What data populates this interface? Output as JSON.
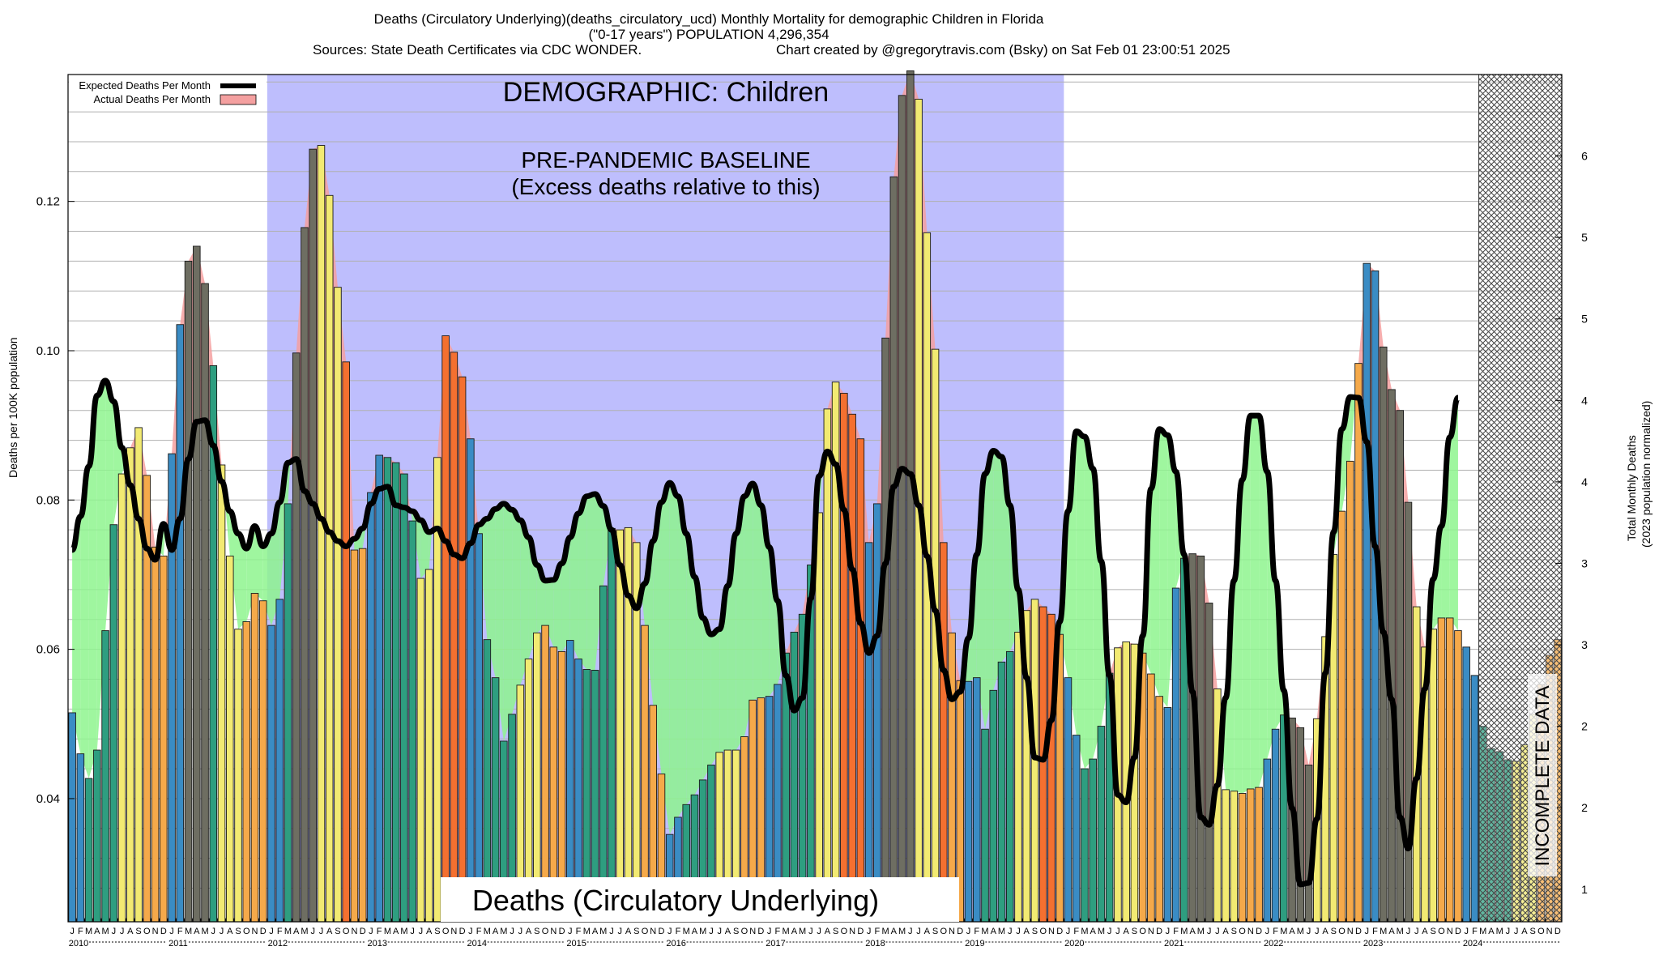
{
  "header": {
    "title": "Deaths (Circulatory Underlying)(deaths_circulatory_ucd) Monthly Mortality for demographic Children in Florida",
    "subtitle": "(\"0-17 years\") POPULATION 4,296,354",
    "sources": "Sources: State Death Certificates via CDC WONDER.",
    "credit": "Chart created by @gregorytravis.com (Bsky) on Sat Feb 01 23:00:51 2025"
  },
  "chart_data": {
    "type": "bar",
    "title": "Deaths (Circulatory Underlying)(deaths_circulatory_ucd) Monthly Mortality for demographic Children in Florida",
    "ylabel": "Deaths per 100K population",
    "y2label_line1": "Total Monthly Deaths",
    "y2label_line2": "(2023 population normalized)",
    "ylim": [
      0.0235,
      0.137
    ],
    "y2lim": [
      0.8,
      6
    ],
    "y_ticks": [
      "0.04",
      "0.06",
      "0.08",
      "0.10",
      "0.12"
    ],
    "y_tick_values": [
      0.04,
      0.06,
      0.08,
      0.1,
      0.12
    ],
    "y2_ticks": [
      "1",
      "2",
      "2",
      "3",
      "3",
      "4",
      "4",
      "5",
      "5",
      "6"
    ],
    "month_letters": [
      "J",
      "F",
      "M",
      "A",
      "M",
      "J",
      "J",
      "A",
      "S",
      "O",
      "N",
      "D"
    ],
    "years": [
      "2010",
      "2011",
      "2012",
      "2013",
      "2014",
      "2015",
      "2016",
      "2017",
      "2018",
      "2019",
      "2020",
      "2021",
      "2022",
      "2023",
      "2024"
    ],
    "x_start": "2010-01",
    "legend": {
      "position": "top-left",
      "items": [
        {
          "label": "Expected Deaths Per Month",
          "color": "#000000"
        },
        {
          "label": "Actual Deaths Per Month",
          "color": "#f4a0a0"
        }
      ]
    },
    "annotations": {
      "demographic": "DEMOGRAPHIC: Children",
      "baseline_line1": "PRE-PANDEMIC BASELINE",
      "baseline_line2": "(Excess deaths relative to this)",
      "metric": "Deaths (Circulatory Underlying)",
      "incomplete": "INCOMPLETE DATA"
    },
    "baseline_period": [
      "2012-01",
      "2019-12"
    ],
    "incomplete_period": [
      "2024-03",
      "2024-12"
    ],
    "colors": {
      "baseline_fill": "#bebefd",
      "excess_fill": "#f4a0a0",
      "deficit_fill": "#8ef58e",
      "bar_blue": "#3a8cc4",
      "bar_teal": "#2e9e80",
      "bar_yellow": "#f2ea72",
      "bar_orange": "#f5a94a",
      "bar_deep_orange": "#f47030",
      "bar_gray": "#6e6e62",
      "expected_line": "#000000"
    },
    "series": [
      {
        "name": "Actual Deaths Per Month",
        "values": [
          0.0515,
          0.046,
          0.0427,
          0.0465,
          0.0625,
          0.0767,
          0.0835,
          0.087,
          0.0897,
          0.0833,
          0.0737,
          0.0725,
          0.0862,
          0.1035,
          0.112,
          0.114,
          0.109,
          0.098,
          0.0847,
          0.0725,
          0.0627,
          0.0637,
          0.0675,
          0.0665,
          0.0632,
          0.0667,
          0.0795,
          0.0997,
          0.1165,
          0.127,
          0.1275,
          0.1208,
          0.1085,
          0.0985,
          0.0733,
          0.0735,
          0.081,
          0.086,
          0.0857,
          0.085,
          0.0835,
          0.0772,
          0.0695,
          0.0707,
          0.0857,
          0.102,
          0.0998,
          0.0965,
          0.0882,
          0.0755,
          0.0613,
          0.0562,
          0.0477,
          0.0513,
          0.0552,
          0.0587,
          0.0622,
          0.0632,
          0.0603,
          0.0597,
          0.0612,
          0.0587,
          0.0573,
          0.0572,
          0.0685,
          0.0762,
          0.076,
          0.0763,
          0.0743,
          0.0632,
          0.0525,
          0.0433,
          0.0352,
          0.0375,
          0.0392,
          0.0405,
          0.0425,
          0.0445,
          0.0462,
          0.0465,
          0.0465,
          0.0483,
          0.0532,
          0.0535,
          0.0537,
          0.0553,
          0.0595,
          0.0623,
          0.0647,
          0.0713,
          0.0783,
          0.0922,
          0.0958,
          0.0943,
          0.0915,
          0.0882,
          0.0743,
          0.0795,
          0.1017,
          0.1233,
          0.1342,
          0.1375,
          0.1337,
          0.1158,
          0.1002,
          0.0743,
          0.0622,
          0.0558,
          0.0557,
          0.0562,
          0.0493,
          0.0545,
          0.0583,
          0.0597,
          0.0623,
          0.0652,
          0.0667,
          0.0657,
          0.0647,
          0.062,
          0.0562,
          0.0485,
          0.044,
          0.0453,
          0.0497,
          0.0568,
          0.0602,
          0.061,
          0.0607,
          0.0595,
          0.0567,
          0.0537,
          0.0522,
          0.0682,
          0.0722,
          0.0728,
          0.0725,
          0.0662,
          0.0547,
          0.0412,
          0.041,
          0.0407,
          0.0413,
          0.0415,
          0.0453,
          0.0493,
          0.0512,
          0.0508,
          0.0495,
          0.0445,
          0.0507,
          0.0617,
          0.0727,
          0.0785,
          0.0852,
          0.0983,
          0.1117,
          0.1107,
          0.1005,
          0.0948,
          0.092,
          0.0797,
          0.0657,
          0.0603,
          0.0627,
          0.0642,
          0.0642,
          0.0625,
          0.0603,
          0.0565,
          0.0497,
          0.0467,
          0.0463,
          0.0452,
          0.045,
          0.0472,
          0.0513,
          0.0553,
          0.0592,
          0.0613
        ]
      },
      {
        "name": "Expected Deaths Per Month",
        "values": [
          0.0733,
          0.0778,
          0.0845,
          0.094,
          0.096,
          0.0932,
          0.087,
          0.082,
          0.0775,
          0.0735,
          0.072,
          0.0768,
          0.0733,
          0.0775,
          0.0855,
          0.0905,
          0.0907,
          0.0873,
          0.0825,
          0.0785,
          0.0755,
          0.0735,
          0.0765,
          0.0738,
          0.0755,
          0.0797,
          0.085,
          0.0855,
          0.0812,
          0.0795,
          0.0775,
          0.0757,
          0.0745,
          0.0738,
          0.0748,
          0.0762,
          0.0795,
          0.0815,
          0.0818,
          0.0793,
          0.079,
          0.0785,
          0.0773,
          0.0757,
          0.0762,
          0.0745,
          0.0727,
          0.0722,
          0.0742,
          0.0767,
          0.0775,
          0.0788,
          0.0795,
          0.0787,
          0.0773,
          0.075,
          0.0713,
          0.0692,
          0.0693,
          0.0715,
          0.075,
          0.0782,
          0.0805,
          0.0808,
          0.0792,
          0.076,
          0.0713,
          0.0672,
          0.0655,
          0.0688,
          0.0745,
          0.0797,
          0.0823,
          0.0805,
          0.0755,
          0.0697,
          0.0642,
          0.062,
          0.0627,
          0.0685,
          0.0755,
          0.0805,
          0.0822,
          0.0793,
          0.0737,
          0.0665,
          0.0565,
          0.0518,
          0.0535,
          0.0668,
          0.0832,
          0.0865,
          0.0848,
          0.0787,
          0.0707,
          0.0635,
          0.0595,
          0.0618,
          0.0715,
          0.0818,
          0.0842,
          0.0835,
          0.0793,
          0.0725,
          0.0652,
          0.0572,
          0.0533,
          0.0543,
          0.0615,
          0.0727,
          0.0835,
          0.0866,
          0.0858,
          0.0793,
          0.068,
          0.0562,
          0.0455,
          0.0452,
          0.0505,
          0.0637,
          0.0785,
          0.0892,
          0.0885,
          0.0842,
          0.0718,
          0.0565,
          0.0405,
          0.0395,
          0.0455,
          0.0618,
          0.0815,
          0.0895,
          0.0887,
          0.0838,
          0.0727,
          0.0543,
          0.0375,
          0.0365,
          0.0418,
          0.0535,
          0.0692,
          0.0827,
          0.0913,
          0.0913,
          0.0838,
          0.0692,
          0.0545,
          0.0387,
          0.0285,
          0.0287,
          0.0373,
          0.0568,
          0.0757,
          0.0895,
          0.0938,
          0.0937,
          0.0878,
          0.0738,
          0.0623,
          0.0533,
          0.0375,
          0.0333,
          0.0427,
          0.0547,
          0.0694,
          0.0765,
          0.0884,
          0.0937
        ]
      }
    ]
  }
}
